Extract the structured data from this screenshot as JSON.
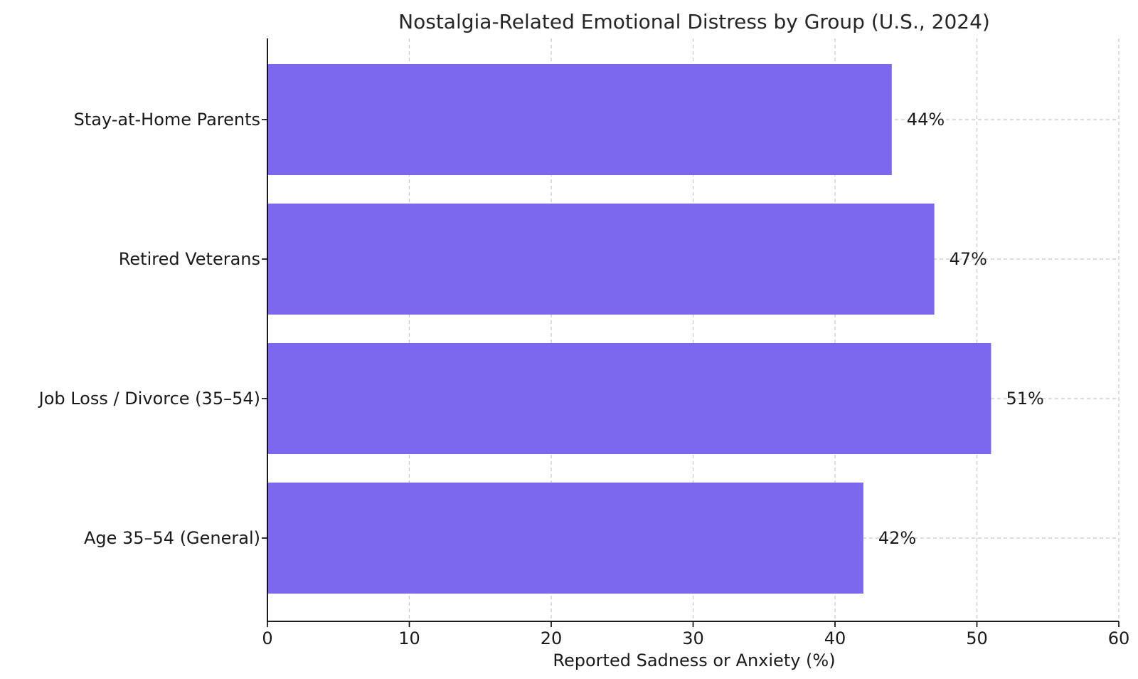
{
  "chart_data": {
    "type": "bar",
    "orientation": "horizontal",
    "title": "Nostalgia-Related Emotional Distress by Group (U.S., 2024)",
    "xlabel": "Reported Sadness or Anxiety (%)",
    "ylabel": "",
    "categories": [
      "Age 35–54 (General)",
      "Job Loss / Divorce (35–54)",
      "Retired Veterans",
      "Stay-at-Home Parents"
    ],
    "values": [
      42,
      51,
      47,
      44
    ],
    "value_labels": [
      "42%",
      "51%",
      "47%",
      "44%"
    ],
    "xlim": [
      0,
      60
    ],
    "xticks": [
      0,
      10,
      20,
      30,
      40,
      50,
      60
    ],
    "xtick_labels": [
      "0",
      "10",
      "20",
      "30",
      "40",
      "50",
      "60"
    ],
    "grid": true,
    "bar_color": "#7b68ee"
  }
}
